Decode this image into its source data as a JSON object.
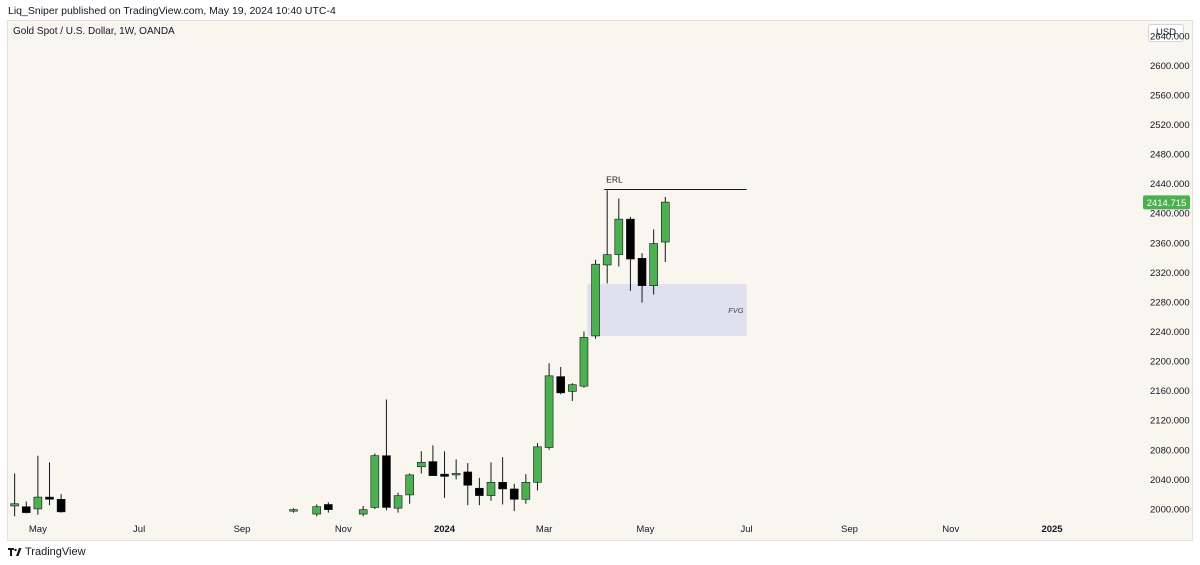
{
  "header": {
    "published_line": "Liq_Sniper published on TradingView.com, May 19, 2024 10:40 UTC-4"
  },
  "symbol": {
    "title": "Gold Spot / U.S. Dollar, 1W, OANDA",
    "currency": "USD"
  },
  "footer": {
    "brand": "TradingView"
  },
  "colors": {
    "bull": "#4caf50",
    "bear": "#000000",
    "wick": "#131722",
    "fvg": "#dfe1ee",
    "price_label": "#4caf50",
    "background": "#f9f6ef"
  },
  "chart_data": {
    "type": "candlestick",
    "title": "Gold Spot / U.S. Dollar, 1W, OANDA",
    "ylim": [
      1985,
      2660
    ],
    "y_ticks": [
      2000,
      2040,
      2080,
      2120,
      2160,
      2200,
      2240,
      2280,
      2320,
      2360,
      2400,
      2440,
      2480,
      2520,
      2560,
      2600,
      2640
    ],
    "y_tick_labels": [
      "2000.000",
      "2040.000",
      "2080.000",
      "2120.000",
      "2160.000",
      "2200.000",
      "2240.000",
      "2280.000",
      "2320.000",
      "2360.000",
      "2400.000",
      "2440.000",
      "2480.000",
      "2520.000",
      "2560.000",
      "2600.000",
      "2640.000"
    ],
    "x_ticks": [
      {
        "label": "May",
        "date": "2023-05-01",
        "bold": false
      },
      {
        "label": "Jul",
        "date": "2023-07-01",
        "bold": false
      },
      {
        "label": "Sep",
        "date": "2023-09-01",
        "bold": false
      },
      {
        "label": "Nov",
        "date": "2023-11-01",
        "bold": false
      },
      {
        "label": "2024",
        "date": "2024-01-01",
        "bold": true
      },
      {
        "label": "Mar",
        "date": "2024-03-01",
        "bold": false
      },
      {
        "label": "May",
        "date": "2024-05-01",
        "bold": false
      },
      {
        "label": "Jul",
        "date": "2024-07-01",
        "bold": false
      },
      {
        "label": "Sep",
        "date": "2024-09-01",
        "bold": false
      },
      {
        "label": "Nov",
        "date": "2024-11-01",
        "bold": false
      },
      {
        "label": "2025",
        "date": "2025-01-01",
        "bold": true
      }
    ],
    "x_range": [
      "2023-04-13",
      "2025-02-20"
    ],
    "candles": [
      {
        "date": "2023-04-17",
        "open": 2004,
        "high": 2048,
        "low": 1990,
        "close": 2007
      },
      {
        "date": "2023-04-24",
        "open": 2003,
        "high": 2010,
        "low": 1994,
        "close": 1995
      },
      {
        "date": "2023-05-01",
        "open": 2000,
        "high": 2072,
        "low": 1992,
        "close": 2016
      },
      {
        "date": "2023-05-08",
        "open": 2016,
        "high": 2063,
        "low": 2005,
        "close": 2013
      },
      {
        "date": "2023-05-15",
        "open": 2013,
        "high": 2020,
        "low": 1995,
        "close": 1996
      },
      {
        "date": "2023-10-02",
        "open": 1998,
        "high": 2001,
        "low": 1995,
        "close": 1999
      },
      {
        "date": "2023-10-16",
        "open": 1993,
        "high": 2006,
        "low": 1990,
        "close": 2003
      },
      {
        "date": "2023-10-23",
        "open": 2006,
        "high": 2009,
        "low": 1995,
        "close": 1999
      },
      {
        "date": "2023-11-13",
        "open": 1993,
        "high": 2004,
        "low": 1990,
        "close": 1999
      },
      {
        "date": "2023-11-20",
        "open": 2002,
        "high": 2075,
        "low": 2000,
        "close": 2072
      },
      {
        "date": "2023-11-27",
        "open": 2072,
        "high": 2148,
        "low": 1998,
        "close": 2002
      },
      {
        "date": "2023-12-04",
        "open": 2001,
        "high": 2022,
        "low": 1995,
        "close": 2018
      },
      {
        "date": "2023-12-11",
        "open": 2019,
        "high": 2048,
        "low": 2007,
        "close": 2046
      },
      {
        "date": "2023-12-18",
        "open": 2057,
        "high": 2078,
        "low": 2048,
        "close": 2063
      },
      {
        "date": "2023-12-25",
        "open": 2064,
        "high": 2086,
        "low": 2051,
        "close": 2045
      },
      {
        "date": "2024-01-01",
        "open": 2047,
        "high": 2078,
        "low": 2015,
        "close": 2044
      },
      {
        "date": "2024-01-08",
        "open": 2047,
        "high": 2067,
        "low": 2040,
        "close": 2048
      },
      {
        "date": "2024-01-15",
        "open": 2050,
        "high": 2062,
        "low": 2005,
        "close": 2032
      },
      {
        "date": "2024-01-22",
        "open": 2028,
        "high": 2042,
        "low": 2005,
        "close": 2018
      },
      {
        "date": "2024-01-29",
        "open": 2018,
        "high": 2063,
        "low": 2011,
        "close": 2036
      },
      {
        "date": "2024-02-05",
        "open": 2036,
        "high": 2070,
        "low": 2006,
        "close": 2027
      },
      {
        "date": "2024-02-12",
        "open": 2027,
        "high": 2034,
        "low": 1997,
        "close": 2013
      },
      {
        "date": "2024-02-19",
        "open": 2013,
        "high": 2047,
        "low": 2007,
        "close": 2036
      },
      {
        "date": "2024-02-26",
        "open": 2036,
        "high": 2089,
        "low": 2025,
        "close": 2084
      },
      {
        "date": "2024-03-04",
        "open": 2083,
        "high": 2197,
        "low": 2080,
        "close": 2180
      },
      {
        "date": "2024-03-11",
        "open": 2179,
        "high": 2192,
        "low": 2155,
        "close": 2157
      },
      {
        "date": "2024-03-18",
        "open": 2159,
        "high": 2170,
        "low": 2146,
        "close": 2168
      },
      {
        "date": "2024-03-25",
        "open": 2166,
        "high": 2240,
        "low": 2164,
        "close": 2232
      },
      {
        "date": "2024-04-01",
        "open": 2234,
        "high": 2337,
        "low": 2230,
        "close": 2331
      },
      {
        "date": "2024-04-08",
        "open": 2330,
        "high": 2431,
        "low": 2305,
        "close": 2344
      },
      {
        "date": "2024-04-15",
        "open": 2344,
        "high": 2420,
        "low": 2328,
        "close": 2392
      },
      {
        "date": "2024-04-22",
        "open": 2392,
        "high": 2395,
        "low": 2295,
        "close": 2338
      },
      {
        "date": "2024-04-29",
        "open": 2339,
        "high": 2346,
        "low": 2279,
        "close": 2302
      },
      {
        "date": "2024-05-06",
        "open": 2302,
        "high": 2378,
        "low": 2290,
        "close": 2359
      },
      {
        "date": "2024-05-13",
        "open": 2361,
        "high": 2422,
        "low": 2334,
        "close": 2415
      }
    ],
    "last_price": {
      "value": 2414.715,
      "label": "2414.715"
    },
    "annotations": {
      "erl": {
        "label": "ERL",
        "price": 2432,
        "start": "2024-04-08",
        "end": "2024-07-01"
      },
      "fvg": {
        "label": "FVG",
        "top": 2304,
        "bottom": 2234,
        "start": "2024-03-27",
        "end": "2024-07-01"
      }
    }
  }
}
